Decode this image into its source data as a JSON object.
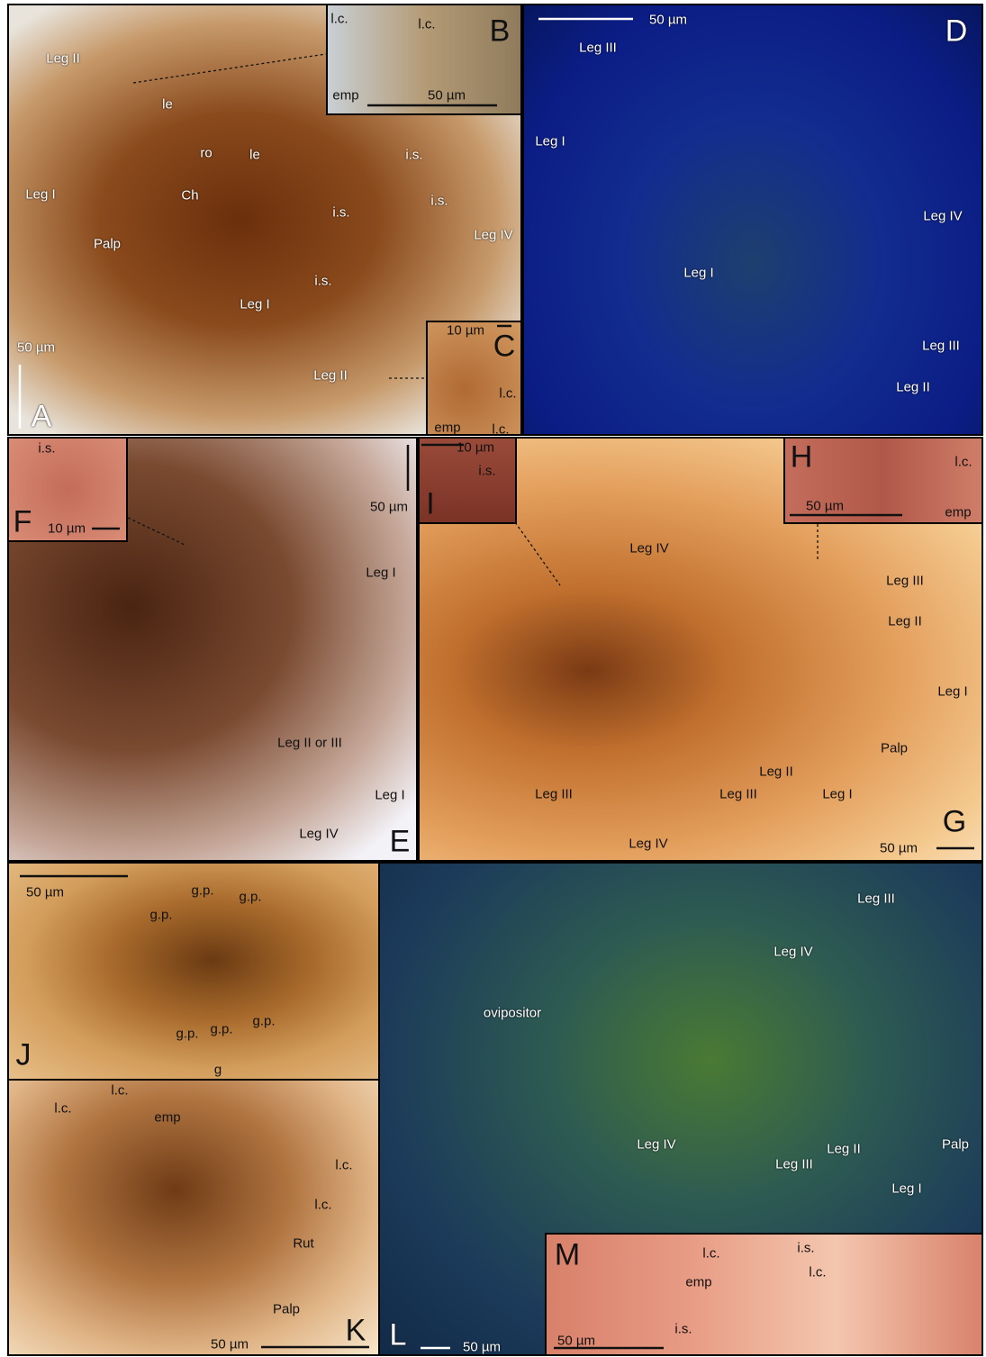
{
  "panels": [
    {
      "letter": "A",
      "labels": [
        "Leg II",
        "le",
        "ro",
        "le",
        "Ch",
        "Leg I",
        "Palp",
        "i.s.",
        "i.s.",
        "i.s.",
        "Leg IV",
        "i.s.",
        "Leg I",
        "50 µm",
        "Leg II"
      ]
    },
    {
      "letter": "B",
      "labels": [
        "l.c.",
        "l.c.",
        "emp",
        "50 µm"
      ]
    },
    {
      "letter": "C",
      "labels": [
        "10 µm",
        "l.c.",
        "emp",
        "l.c."
      ]
    },
    {
      "letter": "D",
      "labels": [
        "50 µm",
        "Leg III",
        "Leg I",
        "Leg IV",
        "Leg I",
        "Leg III",
        "Leg II"
      ]
    },
    {
      "letter": "E",
      "labels": [
        "50 µm",
        "Leg I",
        "Leg II or III",
        "Leg I",
        "Leg IV"
      ]
    },
    {
      "letter": "F",
      "labels": [
        "i.s.",
        "10 µm"
      ]
    },
    {
      "letter": "G",
      "labels": [
        "Leg IV",
        "Leg III",
        "Leg II",
        "Leg I",
        "Palp",
        "Leg II",
        "Leg III",
        "Leg III",
        "Leg I",
        "Leg IV",
        "50 µm"
      ]
    },
    {
      "letter": "H",
      "labels": [
        "l.c.",
        "50 µm",
        "emp"
      ]
    },
    {
      "letter": "I",
      "labels": [
        "10 µm",
        "i.s."
      ]
    },
    {
      "letter": "J",
      "labels": [
        "50 µm",
        "g.p.",
        "g.p.",
        "g.p.",
        "g.p.",
        "g.p.",
        "g.p.",
        "g"
      ]
    },
    {
      "letter": "K",
      "labels": [
        "l.c.",
        "l.c.",
        "emp",
        "l.c.",
        "l.c.",
        "Rut",
        "Palp",
        "50 µm"
      ]
    },
    {
      "letter": "L",
      "labels": [
        "Leg III",
        "Leg IV",
        "ovipositor",
        "Leg IV",
        "Leg II",
        "Palp",
        "Leg III",
        "Leg I",
        "50 µm"
      ]
    },
    {
      "letter": "M",
      "labels": [
        "l.c.",
        "i.s.",
        "l.c.",
        "emp",
        "i.s.",
        "50 µm"
      ]
    }
  ]
}
